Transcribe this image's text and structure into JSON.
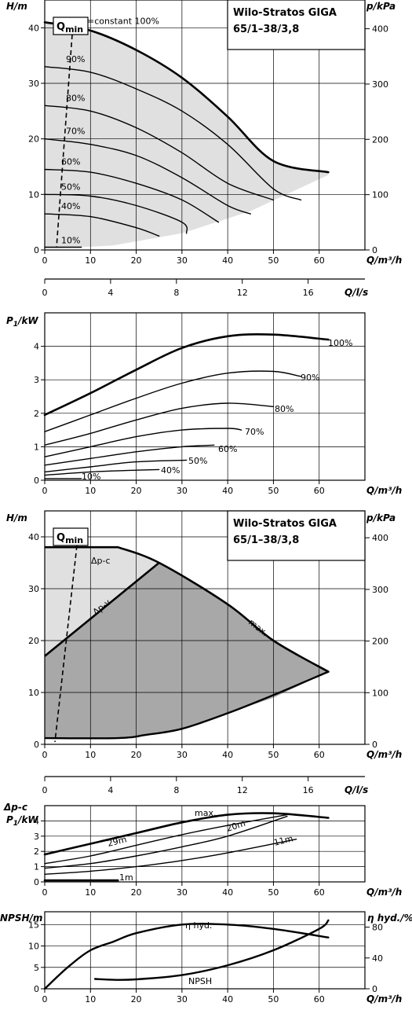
{
  "colors": {
    "line": "#000000",
    "grid": "#000000",
    "region_light": "#e0e0e0",
    "region_dark": "#a8a8a8",
    "background": "#ffffff"
  },
  "chart_data": [
    {
      "id": "hq_speeds",
      "type": "line",
      "title": "Wilo-Stratos GIGA",
      "subtitle": "65/1–38/3,8",
      "ylabel": "H/m",
      "y2label": "p/kPa",
      "xlabel": "Q/m³/h",
      "xlim": [
        0,
        70
      ],
      "ylim": [
        0,
        45
      ],
      "xticks": [
        "0",
        "10",
        "20",
        "30",
        "40",
        "50",
        "60"
      ],
      "yticks": [
        "0",
        "10",
        "20",
        "30",
        "40"
      ],
      "y2ticks": [
        "0",
        "100",
        "200",
        "300",
        "400"
      ],
      "qmin_label": "Qmin",
      "grid": true,
      "series": [
        {
          "name": "n=constant 100%",
          "x": [
            0,
            10,
            20,
            30,
            40,
            50,
            62
          ],
          "y": [
            41,
            39.5,
            36,
            31,
            24,
            16,
            14
          ]
        },
        {
          "name": "90%",
          "x": [
            0,
            10,
            20,
            30,
            40,
            50,
            56
          ],
          "y": [
            33,
            32,
            29,
            25,
            19,
            11,
            9
          ]
        },
        {
          "name": "80%",
          "x": [
            0,
            10,
            20,
            30,
            40,
            50
          ],
          "y": [
            26,
            25,
            22,
            17.5,
            12,
            9
          ]
        },
        {
          "name": "70%",
          "x": [
            0,
            10,
            20,
            30,
            40,
            45
          ],
          "y": [
            20,
            19,
            17,
            13,
            8,
            6.5
          ]
        },
        {
          "name": "60%",
          "x": [
            0,
            10,
            20,
            30,
            38
          ],
          "y": [
            14.5,
            14,
            12,
            9,
            5
          ]
        },
        {
          "name": "50%",
          "x": [
            0,
            10,
            20,
            30,
            31
          ],
          "y": [
            10,
            9.7,
            8,
            5,
            3
          ]
        },
        {
          "name": "40%",
          "x": [
            0,
            10,
            20,
            25
          ],
          "y": [
            6.5,
            6,
            4,
            2.5
          ]
        },
        {
          "name": "10%",
          "x": [
            0,
            8
          ],
          "y": [
            0.5,
            0.5
          ]
        }
      ]
    },
    {
      "id": "q_ls_axis_1",
      "type": "line",
      "xlabel": "Q/l/s",
      "xticks": [
        "0",
        "4",
        "8",
        "12",
        "16"
      ]
    },
    {
      "id": "p1_speeds",
      "type": "line",
      "ylabel": "P1/kW",
      "xlabel": "Q/m³/h",
      "xlim": [
        0,
        70
      ],
      "ylim": [
        0,
        5
      ],
      "xticks": [
        "0",
        "10",
        "20",
        "30",
        "40",
        "50",
        "60"
      ],
      "yticks": [
        "0",
        "1",
        "2",
        "3",
        "4"
      ],
      "grid": true,
      "series": [
        {
          "name": "100%",
          "x": [
            0,
            10,
            20,
            30,
            40,
            50,
            62
          ],
          "y": [
            1.95,
            2.6,
            3.3,
            3.95,
            4.3,
            4.35,
            4.2
          ]
        },
        {
          "name": "90%",
          "x": [
            0,
            10,
            20,
            30,
            40,
            50,
            56
          ],
          "y": [
            1.45,
            1.95,
            2.45,
            2.9,
            3.2,
            3.25,
            3.1
          ]
        },
        {
          "name": "80%",
          "x": [
            0,
            10,
            20,
            30,
            40,
            50
          ],
          "y": [
            1.05,
            1.4,
            1.8,
            2.15,
            2.3,
            2.2
          ]
        },
        {
          "name": "70%",
          "x": [
            0,
            10,
            20,
            30,
            40,
            43
          ],
          "y": [
            0.7,
            1.0,
            1.3,
            1.5,
            1.55,
            1.5
          ]
        },
        {
          "name": "60%",
          "x": [
            0,
            10,
            20,
            30,
            37
          ],
          "y": [
            0.45,
            0.65,
            0.85,
            1.0,
            1.05
          ]
        },
        {
          "name": "50%",
          "x": [
            0,
            10,
            20,
            31
          ],
          "y": [
            0.25,
            0.4,
            0.55,
            0.6
          ]
        },
        {
          "name": "40%",
          "x": [
            0,
            10,
            20,
            25
          ],
          "y": [
            0.15,
            0.25,
            0.3,
            0.32
          ]
        },
        {
          "name": "10%",
          "x": [
            0,
            8
          ],
          "y": [
            0.05,
            0.05
          ]
        }
      ]
    },
    {
      "id": "hq_modes",
      "type": "area",
      "title": "Wilo-Stratos GIGA",
      "subtitle": "65/1–38/3,8",
      "ylabel": "H/m",
      "y2label": "p/kPa",
      "xlabel": "Q/m³/h",
      "xlim": [
        0,
        70
      ],
      "ylim": [
        0,
        45
      ],
      "xticks": [
        "0",
        "10",
        "20",
        "30",
        "40",
        "50",
        "60"
      ],
      "yticks": [
        "0",
        "10",
        "20",
        "30",
        "40"
      ],
      "y2ticks": [
        "0",
        "100",
        "200",
        "300",
        "400"
      ],
      "qmin_label": "Qmin",
      "grid": true,
      "series": [
        {
          "name": "Δp-c",
          "x": [
            0,
            16
          ],
          "y": [
            38,
            38
          ]
        },
        {
          "name": "Δp-v",
          "x": [
            0,
            25
          ],
          "y": [
            17,
            35
          ]
        },
        {
          "name": "max.",
          "x": [
            16,
            25,
            40,
            50,
            62
          ],
          "y": [
            38,
            35,
            27,
            20,
            14
          ]
        }
      ]
    },
    {
      "id": "q_ls_axis_2",
      "type": "line",
      "xlabel": "Q/l/s",
      "xticks": [
        "0",
        "4",
        "8",
        "12",
        "16"
      ]
    },
    {
      "id": "p1_modes",
      "type": "line",
      "ylabel_top": "Δp-c",
      "ylabel": "P1/kW",
      "xlabel": "Q/m³/h",
      "xlim": [
        0,
        70
      ],
      "ylim": [
        0,
        5
      ],
      "xticks": [
        "0",
        "10",
        "20",
        "30",
        "40",
        "50",
        "60"
      ],
      "yticks": [
        "0",
        "1",
        "2",
        "3",
        "4"
      ],
      "grid": true,
      "series": [
        {
          "name": "max.",
          "x": [
            0,
            10,
            20,
            30,
            40,
            50,
            62
          ],
          "y": [
            1.8,
            2.5,
            3.2,
            3.9,
            4.4,
            4.5,
            4.2
          ]
        },
        {
          "name": "29m",
          "x": [
            0,
            10,
            20,
            30,
            40,
            53
          ],
          "y": [
            1.2,
            1.7,
            2.4,
            3.1,
            3.7,
            4.4
          ]
        },
        {
          "name": "20m",
          "x": [
            0,
            10,
            20,
            30,
            40,
            53
          ],
          "y": [
            0.9,
            1.2,
            1.7,
            2.3,
            3.0,
            4.3
          ]
        },
        {
          "name": "11m",
          "x": [
            0,
            10,
            20,
            30,
            40,
            55
          ],
          "y": [
            0.5,
            0.7,
            1.0,
            1.4,
            1.9,
            2.8
          ]
        },
        {
          "name": "1m",
          "x": [
            0,
            16
          ],
          "y": [
            0.1,
            0.1
          ]
        }
      ]
    },
    {
      "id": "npsh_eta",
      "type": "line",
      "ylabel": "NPSH/m",
      "y2label": "η hyd./%",
      "xlabel": "Q/m³/h",
      "xlim": [
        0,
        70
      ],
      "ylim": [
        0,
        18
      ],
      "xticks": [
        "0",
        "10",
        "20",
        "30",
        "40",
        "50",
        "60"
      ],
      "yticks": [
        "0",
        "5",
        "10",
        "15"
      ],
      "y2ticks": [
        "0",
        "40",
        "80"
      ],
      "grid": true,
      "series": [
        {
          "name": "η hyd.",
          "x": [
            0,
            5,
            10,
            15,
            20,
            30,
            40,
            50,
            62
          ],
          "y": [
            0,
            5,
            9,
            11,
            13,
            15,
            15,
            14,
            12
          ]
        },
        {
          "name": "NPSH",
          "x": [
            11,
            15,
            20,
            30,
            40,
            50,
            60,
            62
          ],
          "y": [
            2.3,
            2.1,
            2.2,
            3.2,
            5.5,
            9,
            14,
            16
          ]
        }
      ]
    }
  ]
}
